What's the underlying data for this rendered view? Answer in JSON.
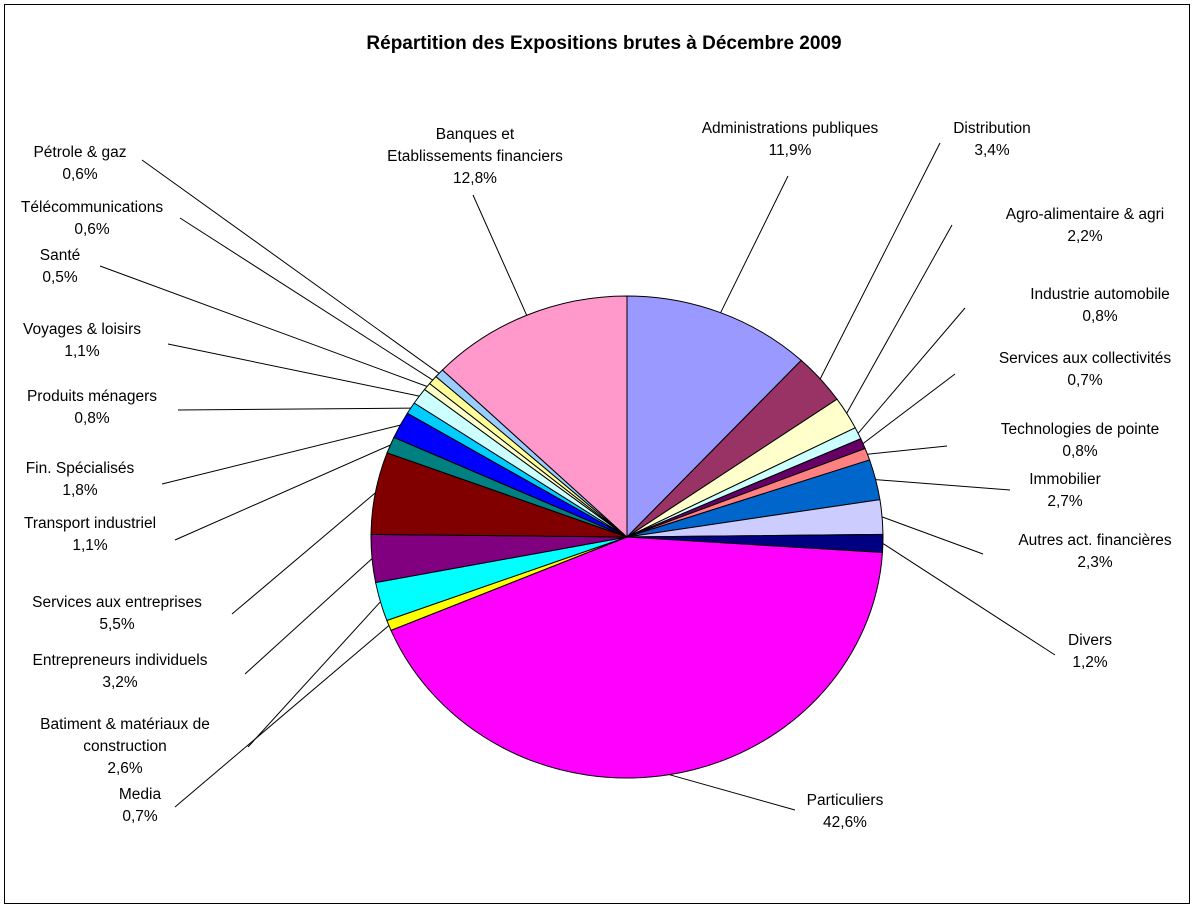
{
  "chart_data": {
    "type": "pie",
    "title": "Répartition des Expositions brutes à Décembre 2009",
    "slices": [
      {
        "label": "Administrations publiques",
        "value_label": "11,9%",
        "value": 11.9,
        "color": "#9999ff"
      },
      {
        "label": "Distribution",
        "value_label": "3,4%",
        "value": 3.4,
        "color": "#993366"
      },
      {
        "label": "Agro-alimentaire & agri",
        "value_label": "2,2%",
        "value": 2.2,
        "color": "#ffffcc"
      },
      {
        "label": "Industrie automobile",
        "value_label": "0,8%",
        "value": 0.8,
        "color": "#ccffff"
      },
      {
        "label": "Services aux collectivités",
        "value_label": "0,7%",
        "value": 0.7,
        "color": "#660066"
      },
      {
        "label": "Technologies de pointe",
        "value_label": "0,8%",
        "value": 0.8,
        "color": "#ff8080"
      },
      {
        "label": "Immobilier",
        "value_label": "2,7%",
        "value": 2.7,
        "color": "#0066cc"
      },
      {
        "label": "Autres act. financières",
        "value_label": "2,3%",
        "value": 2.3,
        "color": "#ccccff"
      },
      {
        "label": "Divers",
        "value_label": "1,2%",
        "value": 1.2,
        "color": "#000080"
      },
      {
        "label": "Particuliers",
        "value_label": "42,6%",
        "value": 42.6,
        "color": "#ff00ff"
      },
      {
        "label": "Media",
        "value_label": "0,7%",
        "value": 0.7,
        "color": "#ffff00"
      },
      {
        "label": "Batiment & matériaux de construction",
        "value_label": "2,6%",
        "value": 2.6,
        "color": "#00ffff"
      },
      {
        "label": "Entrepreneurs individuels",
        "value_label": "3,2%",
        "value": 3.2,
        "color": "#800080"
      },
      {
        "label": "Services aux entreprises",
        "value_label": "5,5%",
        "value": 5.5,
        "color": "#800000"
      },
      {
        "label": "Transport industriel",
        "value_label": "1,1%",
        "value": 1.1,
        "color": "#008080"
      },
      {
        "label": "Fin. Spécialisés",
        "value_label": "1,8%",
        "value": 1.8,
        "color": "#0000ff"
      },
      {
        "label": "Produits ménagers",
        "value_label": "0,8%",
        "value": 0.8,
        "color": "#00ccff"
      },
      {
        "label": "Voyages & loisirs",
        "value_label": "1,1%",
        "value": 1.1,
        "color": "#ccffff"
      },
      {
        "label": "Santé",
        "value_label": "0,5%",
        "value": 0.5,
        "color": "#ffffcc"
      },
      {
        "label": "Télécommunications",
        "value_label": "0,6%",
        "value": 0.6,
        "color": "#ffff99"
      },
      {
        "label": "Pétrole & gaz",
        "value_label": "0,6%",
        "value": 0.6,
        "color": "#99ccff"
      },
      {
        "label": "Banques et Etablissements financiers",
        "value_label": "12,8%",
        "value": 12.8,
        "color": "#ff99cc"
      }
    ]
  }
}
